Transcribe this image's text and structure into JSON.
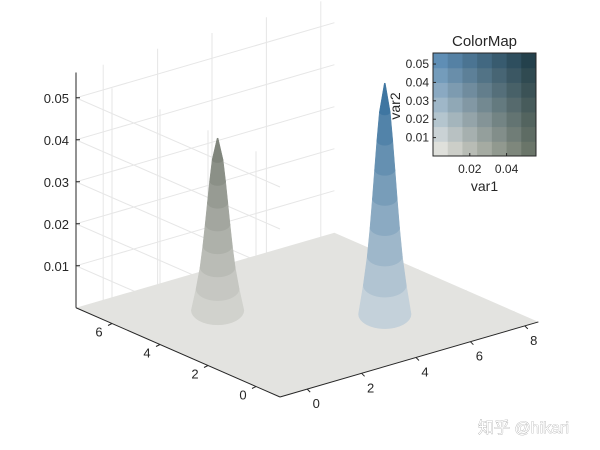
{
  "chart_data": {
    "type": "surface",
    "subtype": "3d-bivariate-colormap-surface",
    "x_ticks": [
      "0",
      "2",
      "4",
      "6",
      "8"
    ],
    "y_ticks": [
      "0",
      "2",
      "4",
      "6"
    ],
    "z_ticks": [
      "0.01",
      "0.02",
      "0.03",
      "0.04",
      "0.05"
    ],
    "xlim": [
      -1,
      8.5
    ],
    "ylim": [
      -1,
      7.5
    ],
    "zlim": [
      0,
      0.056
    ],
    "grid": true,
    "peaks": [
      {
        "x": 2,
        "y": 5,
        "peak_z": 0.041,
        "color_low": "#d7d8d3",
        "color_high": "#7a7f76"
      },
      {
        "x": 5.5,
        "y": 2,
        "peak_z": 0.055,
        "color_low": "#cdd8de",
        "color_high": "#356f9d"
      }
    ],
    "floor_color": "#e3e3e0",
    "colormap_inset": {
      "title": "ColorMap",
      "xlabel": "var1",
      "ylabel": "var2",
      "x_ticks": [
        "0.02",
        "0.04"
      ],
      "y_ticks": [
        "0.01",
        "0.02",
        "0.03",
        "0.04",
        "0.05"
      ],
      "colors": {
        "origin": "#dfe0db",
        "var1_max": "#6a7569",
        "var2_max": "#5f8eb5",
        "both_max": "#24414c"
      }
    }
  },
  "watermark": "知乎 @hikari"
}
